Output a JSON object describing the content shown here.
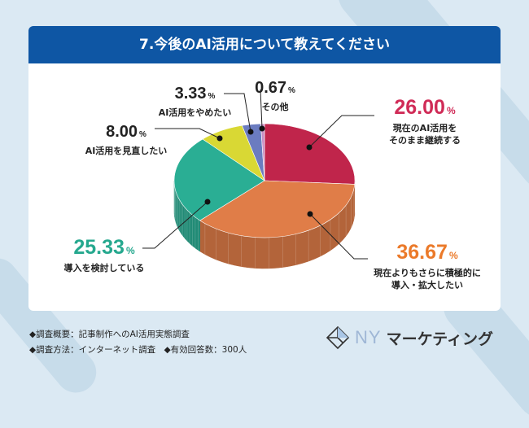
{
  "title": "7.今後のAI活用について教えてください",
  "chart_data": {
    "type": "pie",
    "title": "7.今後のAI活用について教えてください",
    "slices": [
      {
        "label": "現在のAI活用をそのまま継続する",
        "value": 26.0,
        "display": "26.00",
        "color": "#c0254b"
      },
      {
        "label": "現在よりもさらに積極的に導入・拡大したい",
        "value": 36.67,
        "display": "36.67",
        "color": "#e07d48"
      },
      {
        "label": "導入を検討している",
        "value": 25.33,
        "display": "25.33",
        "color": "#2aae94"
      },
      {
        "label": "AI活用を見直したい",
        "value": 8.0,
        "display": "8.00",
        "color": "#d9d834"
      },
      {
        "label": "AI活用をやめたい",
        "value": 3.33,
        "display": "3.33",
        "color": "#6b7cc0"
      },
      {
        "label": "その他",
        "value": 0.67,
        "display": "0.67",
        "color": "#c98fc4"
      }
    ],
    "unit": "%"
  },
  "labels": {
    "l0": [
      "現在のAI活用を",
      "そのまま継続する"
    ],
    "l1": [
      "現在よりもさらに積極的に",
      "導入・拡大したい"
    ]
  },
  "footer": {
    "line1": "◆調査概要：記事制作へのAI活用実態調査",
    "line2": "◆調査方法：インターネット調査　◆有効回答数：300人"
  },
  "logo": {
    "ny": "NY",
    "kana": "マーケティング"
  }
}
